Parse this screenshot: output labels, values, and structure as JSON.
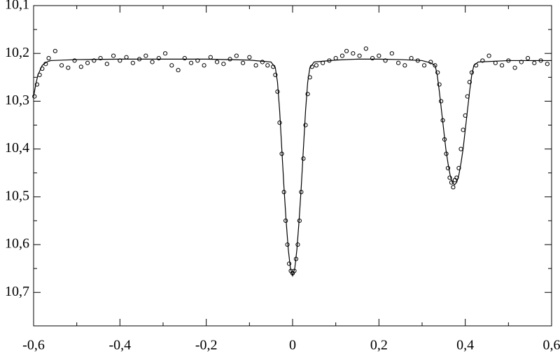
{
  "chart_data": {
    "type": "scatter",
    "xlim": [
      -0.6,
      0.6
    ],
    "ylim": [
      10.1,
      10.77
    ],
    "y_inverted": true,
    "xticks": [
      {
        "value": -0.6,
        "label": "-0,6"
      },
      {
        "value": -0.4,
        "label": "-0,4"
      },
      {
        "value": -0.2,
        "label": "-0,2"
      },
      0,
      {
        "value": 0.2,
        "label": "0,2"
      },
      {
        "value": 0.4,
        "label": "0,4"
      },
      {
        "value": 0.6,
        "label": "0,6"
      }
    ],
    "yticks": [
      {
        "value": 10.1,
        "label": "10,1"
      },
      {
        "value": 10.2,
        "label": "10,2"
      },
      {
        "value": 10.3,
        "label": "10,3"
      },
      {
        "value": 10.4,
        "label": "10,4"
      },
      {
        "value": 10.5,
        "label": "10,5"
      },
      {
        "value": 10.6,
        "label": "10,6"
      },
      {
        "value": 10.7,
        "label": "10,7"
      }
    ],
    "series": [
      {
        "type": "scatter",
        "color": "#000000",
        "x": [
          -0.598,
          -0.592,
          -0.586,
          -0.58,
          -0.572,
          -0.565,
          -0.55,
          -0.535,
          -0.52,
          -0.505,
          -0.49,
          -0.475,
          -0.46,
          -0.445,
          -0.43,
          -0.415,
          -0.4,
          -0.385,
          -0.37,
          -0.355,
          -0.34,
          -0.325,
          -0.31,
          -0.295,
          -0.28,
          -0.265,
          -0.25,
          -0.235,
          -0.22,
          -0.205,
          -0.19,
          -0.175,
          -0.16,
          -0.145,
          -0.13,
          -0.115,
          -0.1,
          -0.085,
          -0.07,
          -0.058,
          -0.045,
          -0.04,
          -0.035,
          -0.03,
          -0.025,
          -0.02,
          -0.016,
          -0.012,
          -0.008,
          -0.004,
          0,
          0.004,
          0.008,
          0.012,
          0.016,
          0.02,
          0.025,
          0.03,
          0.035,
          0.04,
          0.045,
          0.055,
          0.07,
          0.085,
          0.1,
          0.115,
          0.125,
          0.14,
          0.155,
          0.17,
          0.185,
          0.2,
          0.215,
          0.23,
          0.245,
          0.26,
          0.275,
          0.29,
          0.305,
          0.32,
          0.33,
          0.336,
          0.34,
          0.344,
          0.348,
          0.352,
          0.356,
          0.36,
          0.364,
          0.368,
          0.372,
          0.376,
          0.38,
          0.385,
          0.39,
          0.395,
          0.4,
          0.405,
          0.41,
          0.415,
          0.425,
          0.44,
          0.455,
          0.47,
          0.485,
          0.5,
          0.515,
          0.53,
          0.545,
          0.56,
          0.575,
          0.59
        ],
        "values": [
          10.29,
          10.265,
          10.245,
          10.232,
          10.222,
          10.21,
          10.195,
          10.225,
          10.23,
          10.215,
          10.228,
          10.22,
          10.215,
          10.21,
          10.222,
          10.205,
          10.215,
          10.208,
          10.22,
          10.212,
          10.205,
          10.218,
          10.21,
          10.2,
          10.225,
          10.235,
          10.21,
          10.22,
          10.215,
          10.225,
          10.208,
          10.218,
          10.222,
          10.212,
          10.205,
          10.22,
          10.208,
          10.225,
          10.218,
          10.225,
          10.228,
          10.245,
          10.28,
          10.345,
          10.41,
          10.49,
          10.55,
          10.6,
          10.64,
          10.655,
          10.66,
          10.655,
          10.63,
          10.6,
          10.55,
          10.49,
          10.42,
          10.35,
          10.285,
          10.25,
          10.228,
          10.225,
          10.22,
          10.215,
          10.21,
          10.205,
          10.195,
          10.2,
          10.205,
          10.19,
          10.21,
          10.205,
          10.215,
          10.2,
          10.22,
          10.225,
          10.21,
          10.215,
          10.225,
          10.218,
          10.225,
          10.24,
          10.265,
          10.3,
          10.34,
          10.38,
          10.41,
          10.44,
          10.46,
          10.47,
          10.48,
          10.465,
          10.46,
          10.44,
          10.4,
          10.36,
          10.33,
          10.29,
          10.26,
          10.24,
          10.225,
          10.215,
          10.205,
          10.22,
          10.225,
          10.215,
          10.23,
          10.218,
          10.21,
          10.22,
          10.215,
          10.222
        ]
      },
      {
        "type": "line",
        "color": "#000000",
        "x": [
          -0.6,
          -0.595,
          -0.59,
          -0.58,
          -0.57,
          -0.56,
          -0.5,
          -0.4,
          -0.3,
          -0.2,
          -0.1,
          -0.05,
          -0.04,
          -0.035,
          -0.03,
          -0.025,
          -0.02,
          -0.015,
          -0.01,
          -0.005,
          0,
          0.005,
          0.01,
          0.015,
          0.02,
          0.025,
          0.03,
          0.035,
          0.04,
          0.05,
          0.1,
          0.15,
          0.2,
          0.25,
          0.3,
          0.32,
          0.33,
          0.335,
          0.34,
          0.345,
          0.35,
          0.355,
          0.36,
          0.365,
          0.37,
          0.375,
          0.38,
          0.385,
          0.39,
          0.395,
          0.4,
          0.405,
          0.41,
          0.415,
          0.42,
          0.43,
          0.5,
          0.6
        ],
        "values": [
          10.29,
          10.265,
          10.245,
          10.225,
          10.218,
          10.215,
          10.213,
          10.212,
          10.212,
          10.212,
          10.214,
          10.218,
          10.23,
          10.26,
          10.32,
          10.4,
          10.48,
          10.55,
          10.61,
          10.65,
          10.665,
          10.65,
          10.61,
          10.55,
          10.48,
          10.4,
          10.32,
          10.26,
          10.23,
          10.218,
          10.214,
          10.212,
          10.212,
          10.213,
          10.215,
          10.22,
          10.225,
          10.245,
          10.28,
          10.32,
          10.36,
          10.4,
          10.43,
          10.455,
          10.47,
          10.475,
          10.47,
          10.455,
          10.43,
          10.4,
          10.36,
          10.32,
          10.28,
          10.245,
          10.225,
          10.218,
          10.215,
          10.215
        ]
      }
    ]
  }
}
